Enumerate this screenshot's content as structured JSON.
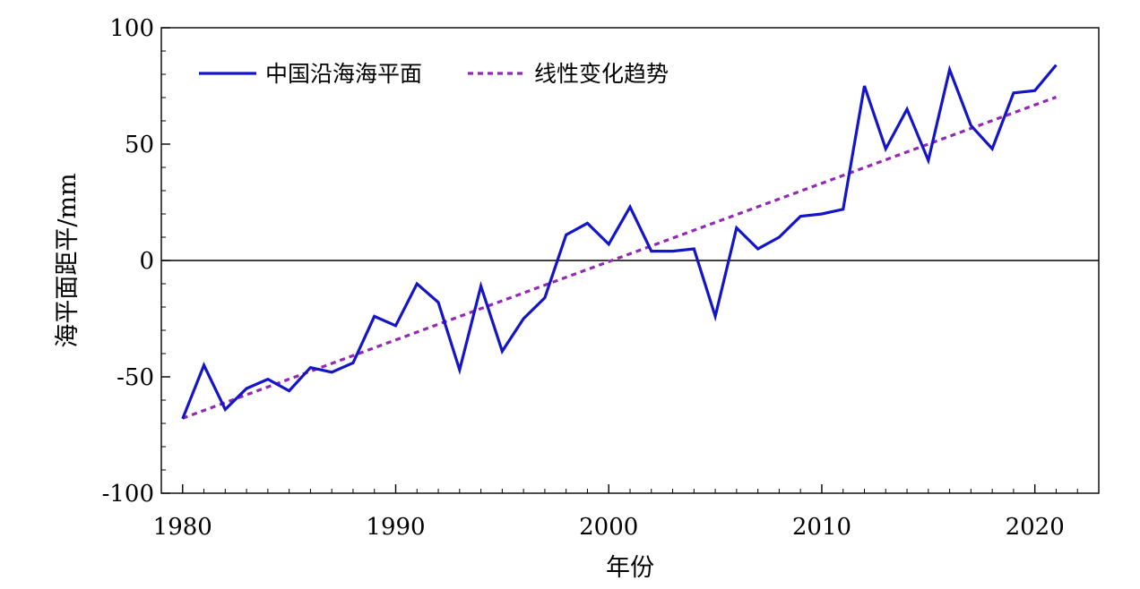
{
  "chart_data": {
    "type": "line",
    "xlabel": "年份",
    "ylabel": "海平面距平/mm",
    "xlim": [
      1979,
      2023
    ],
    "ylim": [
      -100,
      100
    ],
    "x_ticks": [
      1980,
      1990,
      2000,
      2010,
      2020
    ],
    "y_ticks": [
      100,
      50,
      0,
      -50,
      -100
    ],
    "grid": false,
    "zero_line": true,
    "legend_position": "top-left",
    "x": [
      1980,
      1981,
      1982,
      1983,
      1984,
      1985,
      1986,
      1987,
      1988,
      1989,
      1990,
      1991,
      1992,
      1993,
      1994,
      1995,
      1996,
      1997,
      1998,
      1999,
      2000,
      2001,
      2002,
      2003,
      2004,
      2005,
      2006,
      2007,
      2008,
      2009,
      2010,
      2011,
      2012,
      2013,
      2014,
      2015,
      2016,
      2017,
      2018,
      2019,
      2020,
      2021
    ],
    "series": [
      {
        "name": "中国沿海海平面",
        "style": "solid",
        "color": "#1414c8",
        "values": [
          -68,
          -45,
          -64,
          -55,
          -51,
          -56,
          -46,
          -48,
          -44,
          -24,
          -28,
          -10,
          -18,
          -47,
          -11,
          -39,
          -25,
          -16,
          11,
          16,
          7,
          23,
          4,
          4,
          5,
          -24,
          14,
          5,
          10,
          19,
          20,
          22,
          75,
          48,
          65,
          43,
          82,
          58,
          48,
          72,
          73,
          84
        ]
      },
      {
        "name": "线性变化趋势",
        "style": "dashed",
        "color": "#9428b4",
        "x": [
          1980,
          2021
        ],
        "values": [
          -67.8,
          70.2
        ]
      }
    ]
  }
}
